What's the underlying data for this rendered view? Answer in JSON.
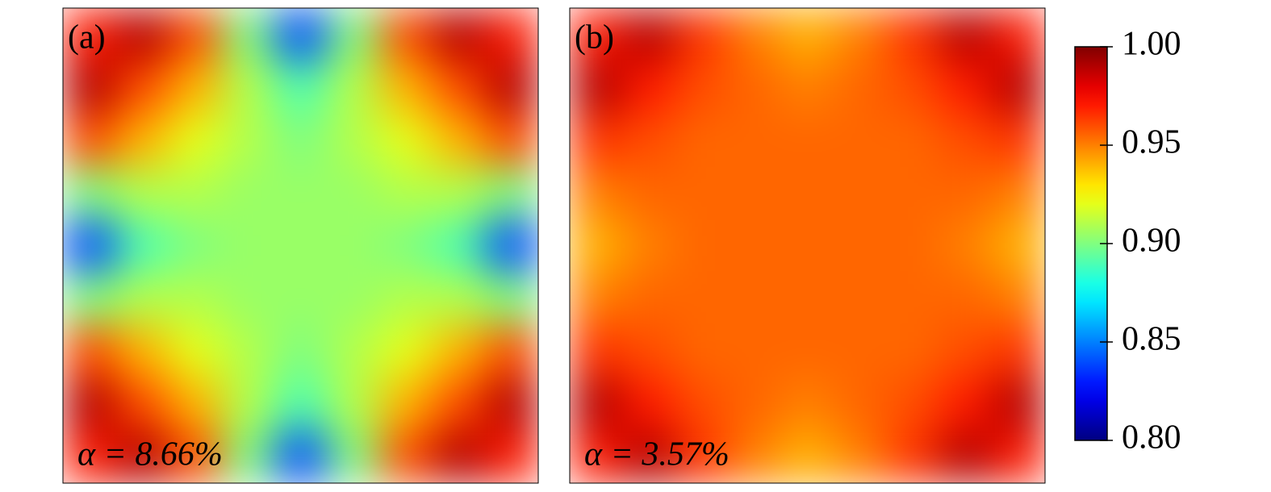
{
  "chart_data": [
    {
      "type": "heatmap",
      "label": "(a)",
      "annotation": "α = 8.66%",
      "z": [
        [
          0.97,
          0.99,
          0.96,
          0.9,
          0.84,
          0.9,
          0.96,
          0.99,
          0.97
        ],
        [
          0.99,
          0.96,
          0.94,
          0.91,
          0.89,
          0.91,
          0.94,
          0.96,
          0.99
        ],
        [
          0.96,
          0.94,
          0.92,
          0.91,
          0.9,
          0.91,
          0.92,
          0.94,
          0.96
        ],
        [
          0.9,
          0.91,
          0.91,
          0.905,
          0.905,
          0.905,
          0.91,
          0.91,
          0.9
        ],
        [
          0.84,
          0.89,
          0.9,
          0.905,
          0.905,
          0.905,
          0.9,
          0.89,
          0.84
        ],
        [
          0.9,
          0.91,
          0.91,
          0.905,
          0.905,
          0.905,
          0.91,
          0.91,
          0.9
        ],
        [
          0.96,
          0.94,
          0.92,
          0.91,
          0.9,
          0.91,
          0.92,
          0.94,
          0.96
        ],
        [
          0.99,
          0.96,
          0.94,
          0.91,
          0.89,
          0.91,
          0.94,
          0.96,
          0.99
        ],
        [
          0.97,
          0.99,
          0.96,
          0.9,
          0.84,
          0.9,
          0.96,
          0.99,
          0.97
        ]
      ]
    },
    {
      "type": "heatmap",
      "label": "(b)",
      "annotation": "α = 3.57%",
      "z": [
        [
          0.97,
          0.99,
          0.965,
          0.95,
          0.94,
          0.95,
          0.965,
          0.99,
          0.97
        ],
        [
          0.99,
          0.97,
          0.96,
          0.955,
          0.95,
          0.955,
          0.96,
          0.97,
          0.99
        ],
        [
          0.965,
          0.96,
          0.955,
          0.955,
          0.955,
          0.955,
          0.955,
          0.96,
          0.965
        ],
        [
          0.95,
          0.955,
          0.955,
          0.955,
          0.955,
          0.955,
          0.955,
          0.955,
          0.95
        ],
        [
          0.94,
          0.95,
          0.955,
          0.955,
          0.955,
          0.955,
          0.955,
          0.95,
          0.94
        ],
        [
          0.95,
          0.955,
          0.955,
          0.955,
          0.955,
          0.955,
          0.955,
          0.955,
          0.95
        ],
        [
          0.965,
          0.96,
          0.955,
          0.955,
          0.955,
          0.955,
          0.955,
          0.96,
          0.965
        ],
        [
          0.99,
          0.97,
          0.96,
          0.955,
          0.95,
          0.955,
          0.96,
          0.97,
          0.99
        ],
        [
          0.97,
          0.99,
          0.965,
          0.95,
          0.94,
          0.95,
          0.965,
          0.99,
          0.97
        ]
      ]
    }
  ],
  "colorbar": {
    "colormap": "jet",
    "clim": [
      0.8,
      1.0
    ],
    "ticks": [
      {
        "value": 0.8,
        "label": "0.80"
      },
      0.85,
      {
        "value": 0.9,
        "label": "0.90"
      },
      0.95,
      {
        "value": 1,
        "label": "1.00"
      }
    ]
  }
}
